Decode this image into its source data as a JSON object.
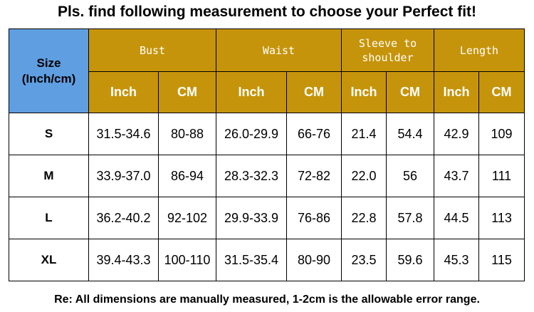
{
  "title": "Pls. find following measurement to choose your Perfect fit!",
  "table": {
    "size_header_line1": "Size",
    "size_header_line2": "(Inch/cm)",
    "groups": [
      "Bust",
      "Waist",
      "Sleeve to shoulder",
      "Length"
    ],
    "group_lines": [
      [
        "Bust"
      ],
      [
        "Waist"
      ],
      [
        "Sleeve to",
        "shoulder"
      ],
      [
        "Length"
      ]
    ],
    "units": [
      "Inch",
      "CM",
      "Inch",
      "CM",
      "Inch",
      "CM",
      "Inch",
      "CM"
    ],
    "rows": [
      {
        "size": "S",
        "values": [
          "31.5-34.6",
          "80-88",
          "26.0-29.9",
          "66-76",
          "21.4",
          "54.4",
          "42.9",
          "109"
        ]
      },
      {
        "size": "M",
        "values": [
          "33.9-37.0",
          "86-94",
          "28.3-32.3",
          "72-82",
          "22.0",
          "56",
          "43.7",
          "111"
        ]
      },
      {
        "size": "L",
        "values": [
          "36.2-40.2",
          "92-102",
          "29.9-33.9",
          "76-86",
          "22.8",
          "57.8",
          "44.5",
          "113"
        ]
      },
      {
        "size": "XL",
        "values": [
          "39.4-43.3",
          "100-110",
          "31.5-35.4",
          "80-90",
          "23.5",
          "59.6",
          "45.3",
          "115"
        ]
      }
    ]
  },
  "colors": {
    "size_header": "#5f9ee0",
    "group_header": "#c6940a"
  },
  "note": "Re: All dimensions are manually measured, 1-2cm is the allowable error range."
}
